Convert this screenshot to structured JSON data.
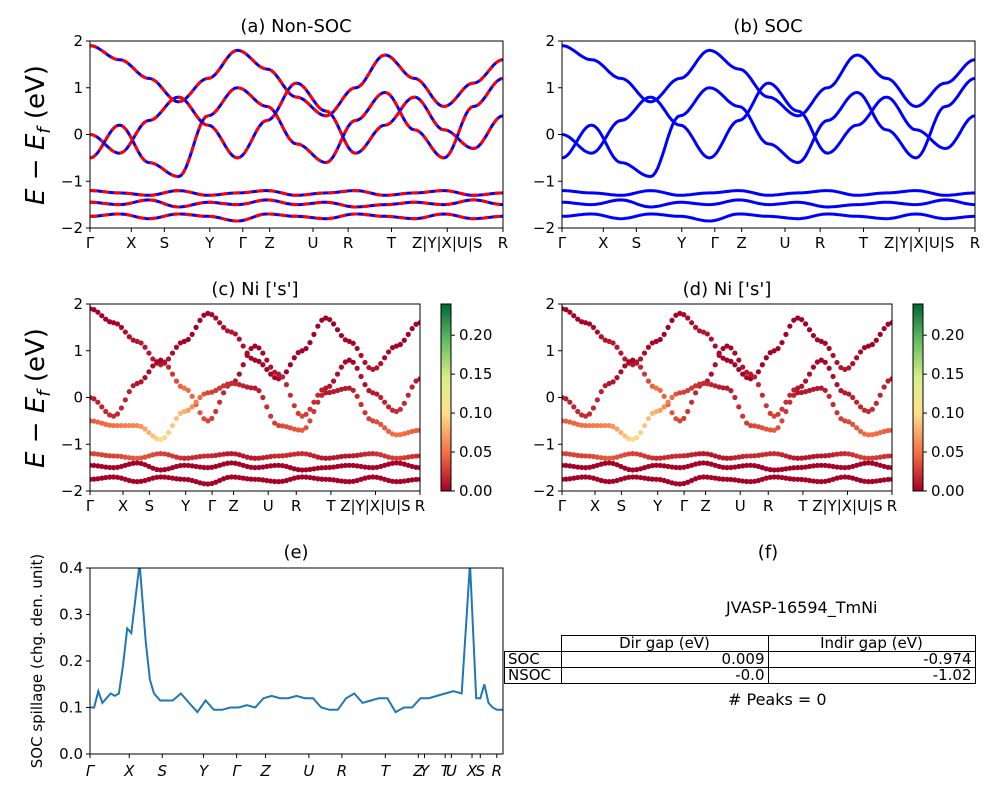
{
  "panels": {
    "a": {
      "title": "(a) Non-SOC"
    },
    "b": {
      "title": "(b) SOC"
    },
    "c": {
      "title": "(c)  Ni ['s']"
    },
    "d": {
      "title": "(d) Ni ['s']"
    },
    "e": {
      "title": "(e)"
    },
    "f": {
      "title": "(f)"
    }
  },
  "ylabel_band": "E − E_f (eV)",
  "ylabel_spillage": "SOC spillage (chg. den. unit)",
  "band_yticks": [
    "−2",
    "−1",
    "0",
    "1",
    "2"
  ],
  "kpath_labels": [
    "Γ",
    "X",
    "S",
    "Y",
    "Γ",
    "Z",
    "U",
    "R",
    "T",
    "Z|Y|X|U|S",
    "R"
  ],
  "kpath_italic_labels": [
    "Γ",
    "X",
    "S",
    "Y",
    "Γ",
    "Z",
    "U",
    "R",
    "T",
    "Z",
    "Y",
    "T",
    "U",
    "X",
    "S",
    "R"
  ],
  "colorbar_ticks": [
    "0.00",
    "0.05",
    "0.10",
    "0.15",
    "0.20"
  ],
  "spillage_yticks": [
    "0.0",
    "0.1",
    "0.2",
    "0.3",
    "0.4"
  ],
  "colors": {
    "nonsoc_solid": "#0000ff",
    "nonsoc_dash": "#ff0000",
    "soc": "#0000ff",
    "spillage_line": "#1f77b4",
    "cmap": [
      "#a50026",
      "#f46d43",
      "#fee08b",
      "#d9ef8b",
      "#66bd63",
      "#006837"
    ]
  },
  "table": {
    "material": "JVASP-16594_TmNi",
    "headers": [
      "Dir gap (eV)",
      "Indir gap (eV)"
    ],
    "rows": [
      {
        "label": "SOC",
        "dir": "0.009",
        "indir": "-0.974"
      },
      {
        "label": "NSOC",
        "dir": "-0.0",
        "indir": "-1.02"
      }
    ],
    "peaks": "# Peaks = 0"
  },
  "chart_data": [
    {
      "type": "line",
      "title": "(a) Non-SOC",
      "ylabel": "E − E_f (eV)",
      "ylim": [
        -2,
        2
      ],
      "xticklabels": [
        "Γ",
        "X",
        "S",
        "Y",
        "Γ",
        "Z",
        "U",
        "R",
        "T",
        "Z|Y|X|U|S",
        "R"
      ],
      "series": [
        {
          "values": [
            1.9,
            1.6,
            1.2,
            0.7,
            1.2,
            1.8,
            1.4,
            0.8,
            0.4,
            1.0,
            1.7,
            1.2,
            0.6,
            1.1,
            1.6
          ]
        },
        {
          "values": [
            0.0,
            -0.4,
            0.3,
            0.8,
            0.2,
            -0.5,
            0.3,
            1.1,
            0.5,
            -0.4,
            0.2,
            0.8,
            0.1,
            -0.3,
            0.4
          ]
        },
        {
          "values": [
            -0.5,
            0.2,
            -0.6,
            -0.9,
            0.4,
            1.0,
            0.6,
            -0.2,
            -0.6,
            0.3,
            0.9,
            0.1,
            -0.5,
            0.6,
            1.2
          ]
        },
        {
          "values": [
            -1.2,
            -1.25,
            -1.3,
            -1.2,
            -1.3,
            -1.25,
            -1.2,
            -1.3,
            -1.25,
            -1.2,
            -1.3,
            -1.25,
            -1.2,
            -1.3,
            -1.25
          ]
        },
        {
          "values": [
            -1.45,
            -1.5,
            -1.4,
            -1.55,
            -1.45,
            -1.5,
            -1.4,
            -1.5,
            -1.45,
            -1.55,
            -1.5,
            -1.45,
            -1.5,
            -1.4,
            -1.5
          ]
        },
        {
          "values": [
            -1.75,
            -1.7,
            -1.8,
            -1.7,
            -1.75,
            -1.85,
            -1.7,
            -1.75,
            -1.8,
            -1.7,
            -1.75,
            -1.8,
            -1.7,
            -1.8,
            -1.75
          ]
        }
      ]
    },
    {
      "type": "line",
      "title": "(b) SOC",
      "ylim": [
        -2,
        2
      ],
      "xticklabels": [
        "Γ",
        "X",
        "S",
        "Y",
        "Γ",
        "Z",
        "U",
        "R",
        "T",
        "Z|Y|X|U|S",
        "R"
      ],
      "series": [
        {
          "values": [
            1.9,
            1.6,
            1.2,
            0.7,
            1.2,
            1.8,
            1.4,
            0.8,
            0.4,
            1.0,
            1.7,
            1.2,
            0.6,
            1.1,
            1.6
          ]
        },
        {
          "values": [
            0.0,
            -0.4,
            0.3,
            0.8,
            0.2,
            -0.5,
            0.3,
            1.1,
            0.5,
            -0.4,
            0.2,
            0.8,
            0.1,
            -0.3,
            0.4
          ]
        },
        {
          "values": [
            -0.5,
            0.2,
            -0.6,
            -0.9,
            0.4,
            1.0,
            0.6,
            -0.2,
            -0.6,
            0.3,
            0.9,
            0.1,
            -0.5,
            0.6,
            1.2
          ]
        },
        {
          "values": [
            -1.2,
            -1.25,
            -1.3,
            -1.2,
            -1.3,
            -1.25,
            -1.2,
            -1.3,
            -1.25,
            -1.2,
            -1.3,
            -1.25,
            -1.2,
            -1.3,
            -1.25
          ]
        },
        {
          "values": [
            -1.45,
            -1.5,
            -1.4,
            -1.55,
            -1.45,
            -1.5,
            -1.4,
            -1.5,
            -1.45,
            -1.55,
            -1.5,
            -1.45,
            -1.5,
            -1.4,
            -1.5
          ]
        },
        {
          "values": [
            -1.75,
            -1.7,
            -1.8,
            -1.7,
            -1.75,
            -1.85,
            -1.7,
            -1.75,
            -1.8,
            -1.7,
            -1.75,
            -1.8,
            -1.7,
            -1.8,
            -1.75
          ]
        }
      ]
    },
    {
      "type": "scatter",
      "title": "(c)  Ni ['s']",
      "ylabel": "E − E_f (eV)",
      "ylim": [
        -2,
        2
      ],
      "colorbar": [
        0,
        0.24
      ],
      "xticklabels": [
        "Γ",
        "X",
        "S",
        "Y",
        "Γ",
        "Z",
        "U",
        "R",
        "T",
        "Z|Y|X|U|S",
        "R"
      ],
      "bands": [
        {
          "values": [
            1.9,
            1.6,
            1.2,
            0.7,
            1.2,
            1.8,
            1.4,
            0.8,
            0.4,
            1.0,
            1.7,
            1.2,
            0.6,
            1.1,
            1.6
          ],
          "weight": [
            0,
            0,
            0.01,
            0.01,
            0,
            0,
            0.01,
            0,
            0,
            0,
            0,
            0,
            0.01,
            0,
            0
          ]
        },
        {
          "values": [
            0.0,
            -0.4,
            0.3,
            0.8,
            0.2,
            -0.5,
            0.3,
            1.1,
            0.5,
            -0.4,
            0.2,
            0.8,
            0.1,
            -0.3,
            0.4
          ],
          "weight": [
            0.01,
            0.02,
            0.01,
            0,
            0.05,
            0.03,
            0.01,
            0,
            0.01,
            0.03,
            0.01,
            0,
            0.01,
            0.02,
            0.01
          ]
        },
        {
          "values": [
            -0.5,
            -0.6,
            -0.6,
            -0.9,
            -0.3,
            0.1,
            0.3,
            0.2,
            -0.6,
            -0.7,
            0.1,
            0.2,
            -0.5,
            -0.8,
            -0.7
          ],
          "weight": [
            0.04,
            0.05,
            0.06,
            0.1,
            0.08,
            0.03,
            0.02,
            0.01,
            0.03,
            0.04,
            0.01,
            0.01,
            0.03,
            0.05,
            0.04
          ]
        },
        {
          "values": [
            -1.2,
            -1.25,
            -1.3,
            -1.2,
            -1.3,
            -1.25,
            -1.2,
            -1.3,
            -1.25,
            -1.2,
            -1.3,
            -1.25,
            -1.2,
            -1.3,
            -1.25
          ],
          "weight": [
            0.03,
            0.03,
            0.04,
            0.03,
            0.02,
            0.02,
            0.01,
            0.01,
            0.02,
            0.02,
            0.01,
            0.01,
            0.02,
            0.03,
            0.02
          ]
        },
        {
          "values": [
            -1.45,
            -1.5,
            -1.4,
            -1.55,
            -1.45,
            -1.5,
            -1.4,
            -1.5,
            -1.45,
            -1.55,
            -1.5,
            -1.45,
            -1.5,
            -1.4,
            -1.5
          ],
          "weight": [
            0,
            0,
            0,
            0,
            0,
            0,
            0,
            0,
            0,
            0,
            0,
            0,
            0,
            0,
            0
          ]
        },
        {
          "values": [
            -1.75,
            -1.7,
            -1.8,
            -1.7,
            -1.75,
            -1.85,
            -1.7,
            -1.75,
            -1.8,
            -1.7,
            -1.75,
            -1.8,
            -1.7,
            -1.8,
            -1.75
          ],
          "weight": [
            0,
            0,
            0,
            0,
            0,
            0,
            0,
            0,
            0,
            0,
            0,
            0,
            0,
            0,
            0
          ]
        }
      ]
    },
    {
      "type": "scatter",
      "title": "(d) Ni ['s']",
      "ylim": [
        -2,
        2
      ],
      "colorbar": [
        0,
        0.24
      ],
      "xticklabels": [
        "Γ",
        "X",
        "S",
        "Y",
        "Γ",
        "Z",
        "U",
        "R",
        "T",
        "Z|Y|X|U|S",
        "R"
      ],
      "bands": "same as (c)"
    },
    {
      "type": "line",
      "title": "(e)",
      "ylabel": "SOC spillage (chg. den. unit)",
      "ylim": [
        0,
        0.4
      ],
      "xticklabels": [
        "Γ",
        "X",
        "S",
        "Y",
        "Γ",
        "Z",
        "U",
        "R",
        "T",
        "Z",
        "Y",
        "T",
        "U",
        "X",
        "S",
        "R"
      ],
      "x": [
        0.0,
        0.01,
        0.02,
        0.03,
        0.04,
        0.05,
        0.06,
        0.07,
        0.08,
        0.09,
        0.1,
        0.12,
        0.135,
        0.145,
        0.155,
        0.165,
        0.17,
        0.18,
        0.2,
        0.22,
        0.24,
        0.26,
        0.28,
        0.3,
        0.32,
        0.34,
        0.36,
        0.38,
        0.4,
        0.42,
        0.44,
        0.46,
        0.48,
        0.5,
        0.52,
        0.54,
        0.56,
        0.58,
        0.6,
        0.62,
        0.64,
        0.66,
        0.68,
        0.7,
        0.72,
        0.74,
        0.76,
        0.78,
        0.8,
        0.82,
        0.84,
        0.86,
        0.88,
        0.9,
        0.92,
        0.935,
        0.945,
        0.955,
        0.965,
        0.975,
        0.985,
        1.0
      ],
      "y": [
        0.1,
        0.1,
        0.135,
        0.11,
        0.12,
        0.13,
        0.125,
        0.13,
        0.19,
        0.27,
        0.26,
        0.41,
        0.24,
        0.16,
        0.13,
        0.12,
        0.115,
        0.115,
        0.115,
        0.13,
        0.11,
        0.09,
        0.115,
        0.095,
        0.095,
        0.1,
        0.1,
        0.105,
        0.1,
        0.12,
        0.125,
        0.12,
        0.12,
        0.125,
        0.12,
        0.12,
        0.1,
        0.095,
        0.095,
        0.12,
        0.13,
        0.11,
        0.115,
        0.12,
        0.12,
        0.09,
        0.1,
        0.1,
        0.12,
        0.12,
        0.125,
        0.13,
        0.135,
        0.13,
        0.41,
        0.12,
        0.12,
        0.15,
        0.11,
        0.1,
        0.095,
        0.095
      ]
    }
  ]
}
